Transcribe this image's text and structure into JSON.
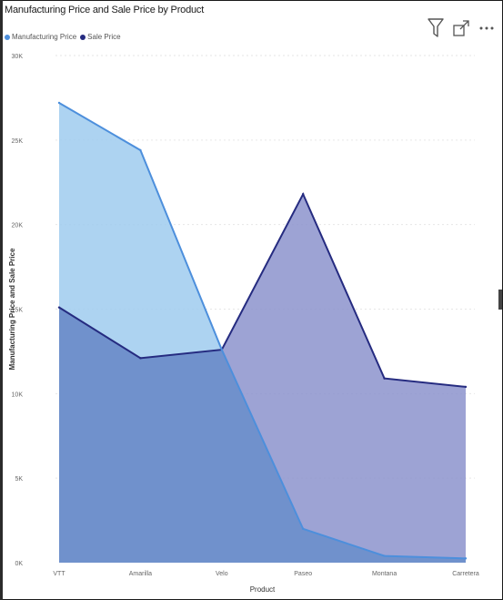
{
  "header": {
    "title": "Manufacturing Price and Sale Price by Product"
  },
  "toolbar": {
    "filter_icon": "filter-icon",
    "focus_icon": "focus-mode-icon",
    "more_icon": "more-options-icon"
  },
  "chart_data": {
    "type": "area",
    "title": "Manufacturing Price and Sale Price by Product",
    "xlabel": "Product",
    "ylabel": "Manufacturing Price and Sale Price",
    "categories": [
      "VTT",
      "Amarilla",
      "Velo",
      "Paseo",
      "Montana",
      "Carretera"
    ],
    "yticks": [
      "0K",
      "5K",
      "10K",
      "15K",
      "20K",
      "25K",
      "30K"
    ],
    "ylim": [
      0,
      30000
    ],
    "legend_position": "top-left",
    "grid": true,
    "series": [
      {
        "name": "Manufacturing Price",
        "values": [
          27200,
          24400,
          12600,
          2000,
          400,
          250
        ],
        "color": "#4d8fdc",
        "fill": "#9fcbef"
      },
      {
        "name": "Sale Price",
        "values": [
          15100,
          12100,
          12600,
          21800,
          10900,
          10400
        ],
        "color": "#252b80",
        "fill": "#8c93cc"
      }
    ]
  }
}
